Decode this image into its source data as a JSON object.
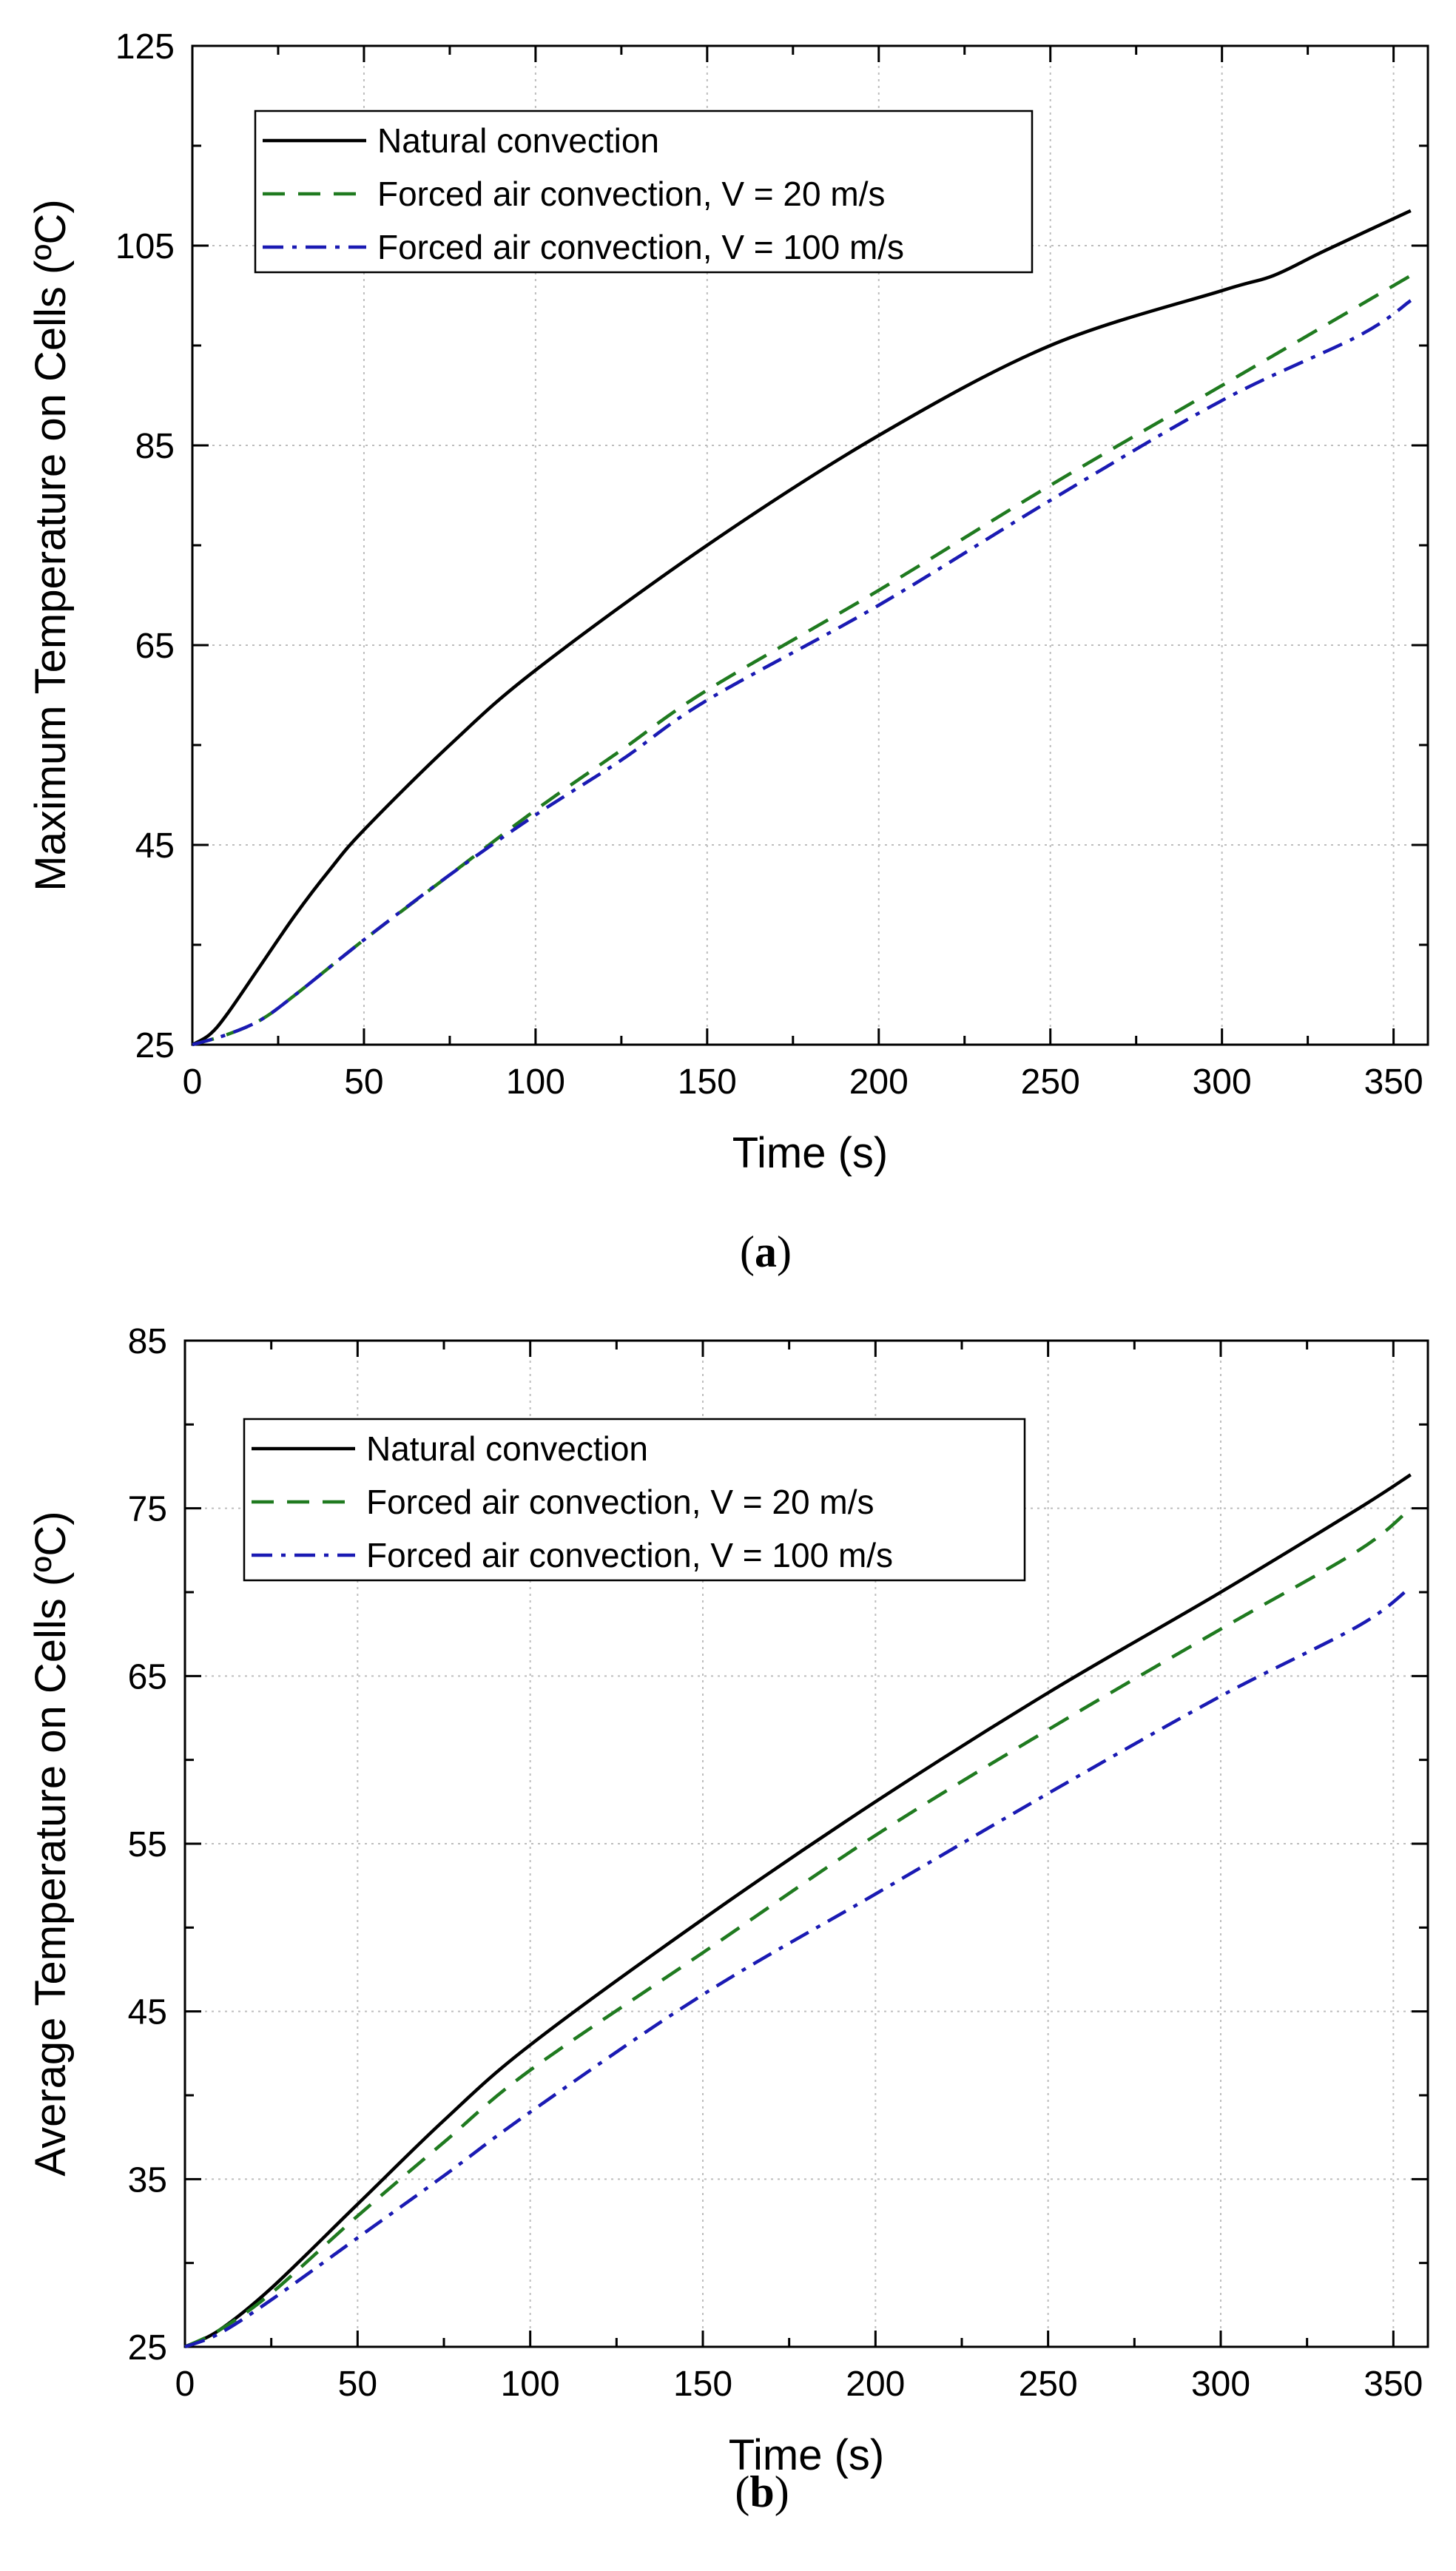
{
  "chart_data": [
    {
      "type": "line",
      "panel_label": "a",
      "xlabel": "Time (s)",
      "ylabel": "Maximum Temperature on Cells (ºC)",
      "xlim": [
        0,
        360
      ],
      "ylim": [
        25,
        125
      ],
      "xticks": [
        0,
        50,
        100,
        150,
        200,
        250,
        300,
        350
      ],
      "yticks": [
        25,
        45,
        65,
        85,
        105,
        125
      ],
      "grid": true,
      "legend_position": "top-left",
      "series": [
        {
          "name": "Natural convection",
          "color": "#000000",
          "dash": "solid",
          "x": [
            0,
            5,
            10,
            20,
            30,
            40,
            50,
            75,
            100,
            150,
            200,
            250,
            300,
            315,
            330,
            355
          ],
          "y": [
            25,
            26,
            28,
            33,
            38,
            42.5,
            46.5,
            55,
            62.5,
            75,
            86,
            95,
            100.5,
            102,
            104.5,
            108.5
          ]
        },
        {
          "name": "Forced air convection, V = 20 m/s",
          "color": "#1f7a1f",
          "dash": "dashed",
          "x": [
            0,
            10,
            20,
            30,
            50,
            75,
            100,
            125,
            150,
            200,
            250,
            300,
            355
          ],
          "y": [
            25,
            26,
            27.5,
            30,
            35.5,
            42,
            48.5,
            54.5,
            60.5,
            70.5,
            81,
            91,
            102
          ]
        },
        {
          "name": "Forced air convection, V = 100 m/s",
          "color": "#1a1ab3",
          "dash": "dashdot",
          "x": [
            0,
            10,
            20,
            30,
            50,
            75,
            100,
            125,
            150,
            200,
            250,
            300,
            340,
            355
          ],
          "y": [
            25,
            26,
            27.5,
            30,
            35.5,
            42,
            48,
            53.5,
            59.5,
            69,
            79.5,
            89.5,
            96,
            99.5
          ]
        }
      ]
    },
    {
      "type": "line",
      "panel_label": "b",
      "xlabel": "Time (s)",
      "ylabel": "Average Temperature on Cells (ºC)",
      "xlim": [
        0,
        360
      ],
      "ylim": [
        25,
        85
      ],
      "xticks": [
        0,
        50,
        100,
        150,
        200,
        250,
        300,
        350
      ],
      "yticks": [
        25,
        35,
        45,
        55,
        65,
        75,
        85
      ],
      "grid": true,
      "legend_position": "top-left",
      "series": [
        {
          "name": "Natural convection",
          "color": "#000000",
          "dash": "solid",
          "x": [
            0,
            10,
            25,
            50,
            75,
            100,
            150,
            200,
            250,
            300,
            340,
            355
          ],
          "y": [
            25,
            26,
            28.5,
            33.5,
            38.5,
            43,
            50.5,
            57.5,
            64,
            70,
            75,
            77
          ]
        },
        {
          "name": "Forced air convection, V = 20 m/s",
          "color": "#1f7a1f",
          "dash": "dashed",
          "x": [
            0,
            10,
            25,
            50,
            75,
            100,
            150,
            200,
            250,
            300,
            340,
            355
          ],
          "y": [
            25,
            26,
            28.2,
            32.8,
            37.2,
            41.5,
            48.5,
            55.5,
            61.8,
            67.8,
            72.5,
            75
          ]
        },
        {
          "name": "Forced air convection, V = 100 m/s",
          "color": "#1a1ab3",
          "dash": "dashdot",
          "x": [
            0,
            10,
            25,
            50,
            75,
            100,
            150,
            200,
            250,
            300,
            340,
            355
          ],
          "y": [
            25,
            25.8,
            27.8,
            31.5,
            35.2,
            39,
            46,
            52,
            58,
            63.8,
            68,
            70.3
          ]
        }
      ]
    }
  ]
}
